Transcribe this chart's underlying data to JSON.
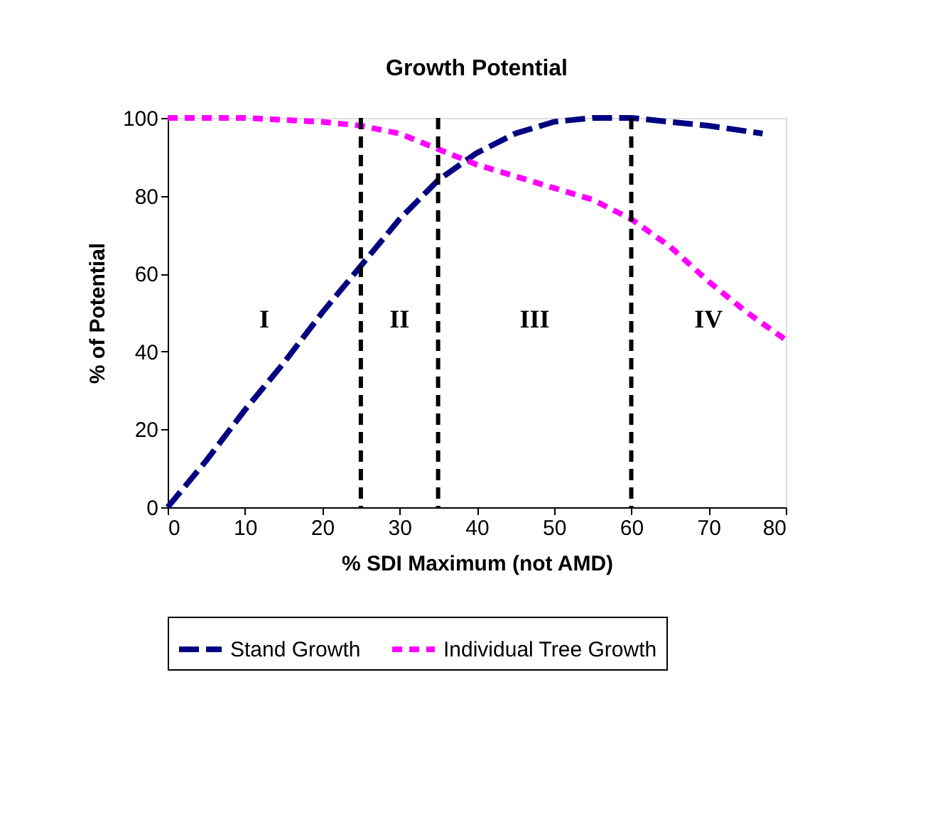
{
  "chart_data": {
    "type": "line",
    "title": "Growth Potential",
    "xlabel": "% SDI Maximum (not AMD)",
    "ylabel": "% of Potential",
    "xlim": [
      0,
      80
    ],
    "xticks": [
      0,
      10,
      20,
      30,
      40,
      50,
      60,
      70,
      80
    ],
    "ylim": [
      0,
      100
    ],
    "yticks": [
      0,
      20,
      40,
      60,
      80,
      100
    ],
    "grid": false,
    "legend": "bottom",
    "marker": "none",
    "series": [
      {
        "name": "Stand Growth",
        "color": "#000080",
        "line_style": "dashed",
        "x": [
          0,
          5,
          10,
          15,
          20,
          25,
          30,
          35,
          40,
          45,
          50,
          55,
          60,
          65,
          70,
          77
        ],
        "values": [
          0,
          12,
          25,
          37,
          50,
          62,
          74,
          84,
          91,
          96,
          99,
          100,
          100,
          99,
          98,
          96
        ]
      },
      {
        "name": "Individual Tree Growth",
        "color": "#ff00ff",
        "line_style": "dotted",
        "x": [
          0,
          10,
          20,
          25,
          30,
          35,
          40,
          45,
          50,
          55,
          60,
          65,
          70,
          75,
          80
        ],
        "values": [
          100,
          100,
          99,
          98,
          96,
          92,
          88,
          85,
          82,
          79,
          74,
          67,
          58,
          50,
          43
        ]
      }
    ],
    "ref_lines": [
      {
        "axis": "x",
        "value": 25,
        "color": "#000000",
        "line_style": "dashed"
      },
      {
        "axis": "x",
        "value": 35,
        "color": "#000000",
        "line_style": "dashed"
      },
      {
        "axis": "x",
        "value": 60,
        "color": "#000000",
        "line_style": "dashed"
      }
    ],
    "annotations": [
      "I",
      "II",
      "III",
      "IV"
    ]
  }
}
